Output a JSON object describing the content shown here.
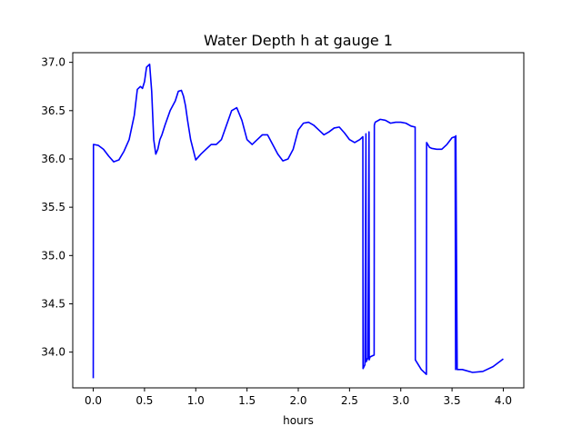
{
  "chart_data": {
    "type": "line",
    "title": "Water Depth h at gauge 1",
    "xlabel": "hours",
    "ylabel": "",
    "xlim": [
      -0.2,
      4.2
    ],
    "ylim": [
      33.63,
      37.1
    ],
    "xticks": [
      0.0,
      0.5,
      1.0,
      1.5,
      2.0,
      2.5,
      3.0,
      3.5,
      4.0
    ],
    "xtick_labels": [
      "0.0",
      "0.5",
      "1.0",
      "1.5",
      "2.0",
      "2.5",
      "3.0",
      "3.5",
      "4.0"
    ],
    "yticks": [
      34.0,
      34.5,
      35.0,
      35.5,
      36.0,
      36.5,
      37.0
    ],
    "ytick_labels": [
      "34.0",
      "34.5",
      "35.0",
      "35.5",
      "36.0",
      "36.5",
      "37.0"
    ],
    "grid": false,
    "series": [
      {
        "color": "#0000ff",
        "x": [
          0.0,
          0.002,
          0.05,
          0.1,
          0.15,
          0.2,
          0.25,
          0.3,
          0.35,
          0.4,
          0.43,
          0.46,
          0.48,
          0.5,
          0.52,
          0.55,
          0.57,
          0.59,
          0.61,
          0.63,
          0.65,
          0.67,
          0.7,
          0.75,
          0.8,
          0.83,
          0.86,
          0.88,
          0.9,
          0.92,
          0.95,
          1.0,
          1.05,
          1.1,
          1.15,
          1.2,
          1.25,
          1.3,
          1.35,
          1.4,
          1.45,
          1.5,
          1.55,
          1.6,
          1.65,
          1.7,
          1.75,
          1.8,
          1.85,
          1.9,
          1.95,
          2.0,
          2.05,
          2.1,
          2.15,
          2.2,
          2.25,
          2.3,
          2.35,
          2.4,
          2.45,
          2.5,
          2.55,
          2.6,
          2.62,
          2.63,
          2.632,
          2.65,
          2.66,
          2.662,
          2.68,
          2.69,
          2.692,
          2.7,
          2.72,
          2.74,
          2.742,
          2.75,
          2.8,
          2.85,
          2.9,
          2.95,
          3.0,
          3.05,
          3.1,
          3.14,
          3.142,
          3.2,
          3.25,
          3.252,
          3.28,
          3.3,
          3.35,
          3.4,
          3.45,
          3.5,
          3.53,
          3.535,
          3.537,
          3.55,
          3.6,
          3.7,
          3.8,
          3.9,
          4.0
        ],
        "y": [
          33.73,
          36.15,
          36.14,
          36.1,
          36.03,
          35.97,
          35.99,
          36.08,
          36.2,
          36.45,
          36.72,
          36.75,
          36.73,
          36.8,
          36.95,
          36.98,
          36.7,
          36.2,
          36.05,
          36.1,
          36.2,
          36.25,
          36.35,
          36.5,
          36.6,
          36.7,
          36.71,
          36.65,
          36.55,
          36.4,
          36.2,
          35.99,
          36.05,
          36.1,
          36.15,
          36.15,
          36.2,
          36.35,
          36.5,
          36.53,
          36.4,
          36.2,
          36.15,
          36.2,
          36.25,
          36.25,
          36.15,
          36.05,
          35.98,
          36.0,
          36.1,
          36.3,
          36.37,
          36.38,
          36.35,
          36.3,
          36.25,
          36.28,
          36.32,
          36.33,
          36.27,
          36.2,
          36.17,
          36.2,
          36.22,
          36.23,
          33.83,
          33.87,
          36.26,
          33.9,
          33.94,
          36.28,
          33.92,
          33.95,
          33.96,
          33.97,
          36.35,
          36.38,
          36.41,
          36.4,
          36.37,
          36.38,
          36.38,
          36.37,
          36.34,
          36.33,
          33.92,
          33.82,
          33.77,
          36.17,
          36.12,
          36.11,
          36.1,
          36.1,
          36.15,
          36.22,
          36.23,
          33.82,
          36.24,
          33.82,
          33.82,
          33.79,
          33.8,
          33.85,
          33.93
        ]
      }
    ]
  }
}
